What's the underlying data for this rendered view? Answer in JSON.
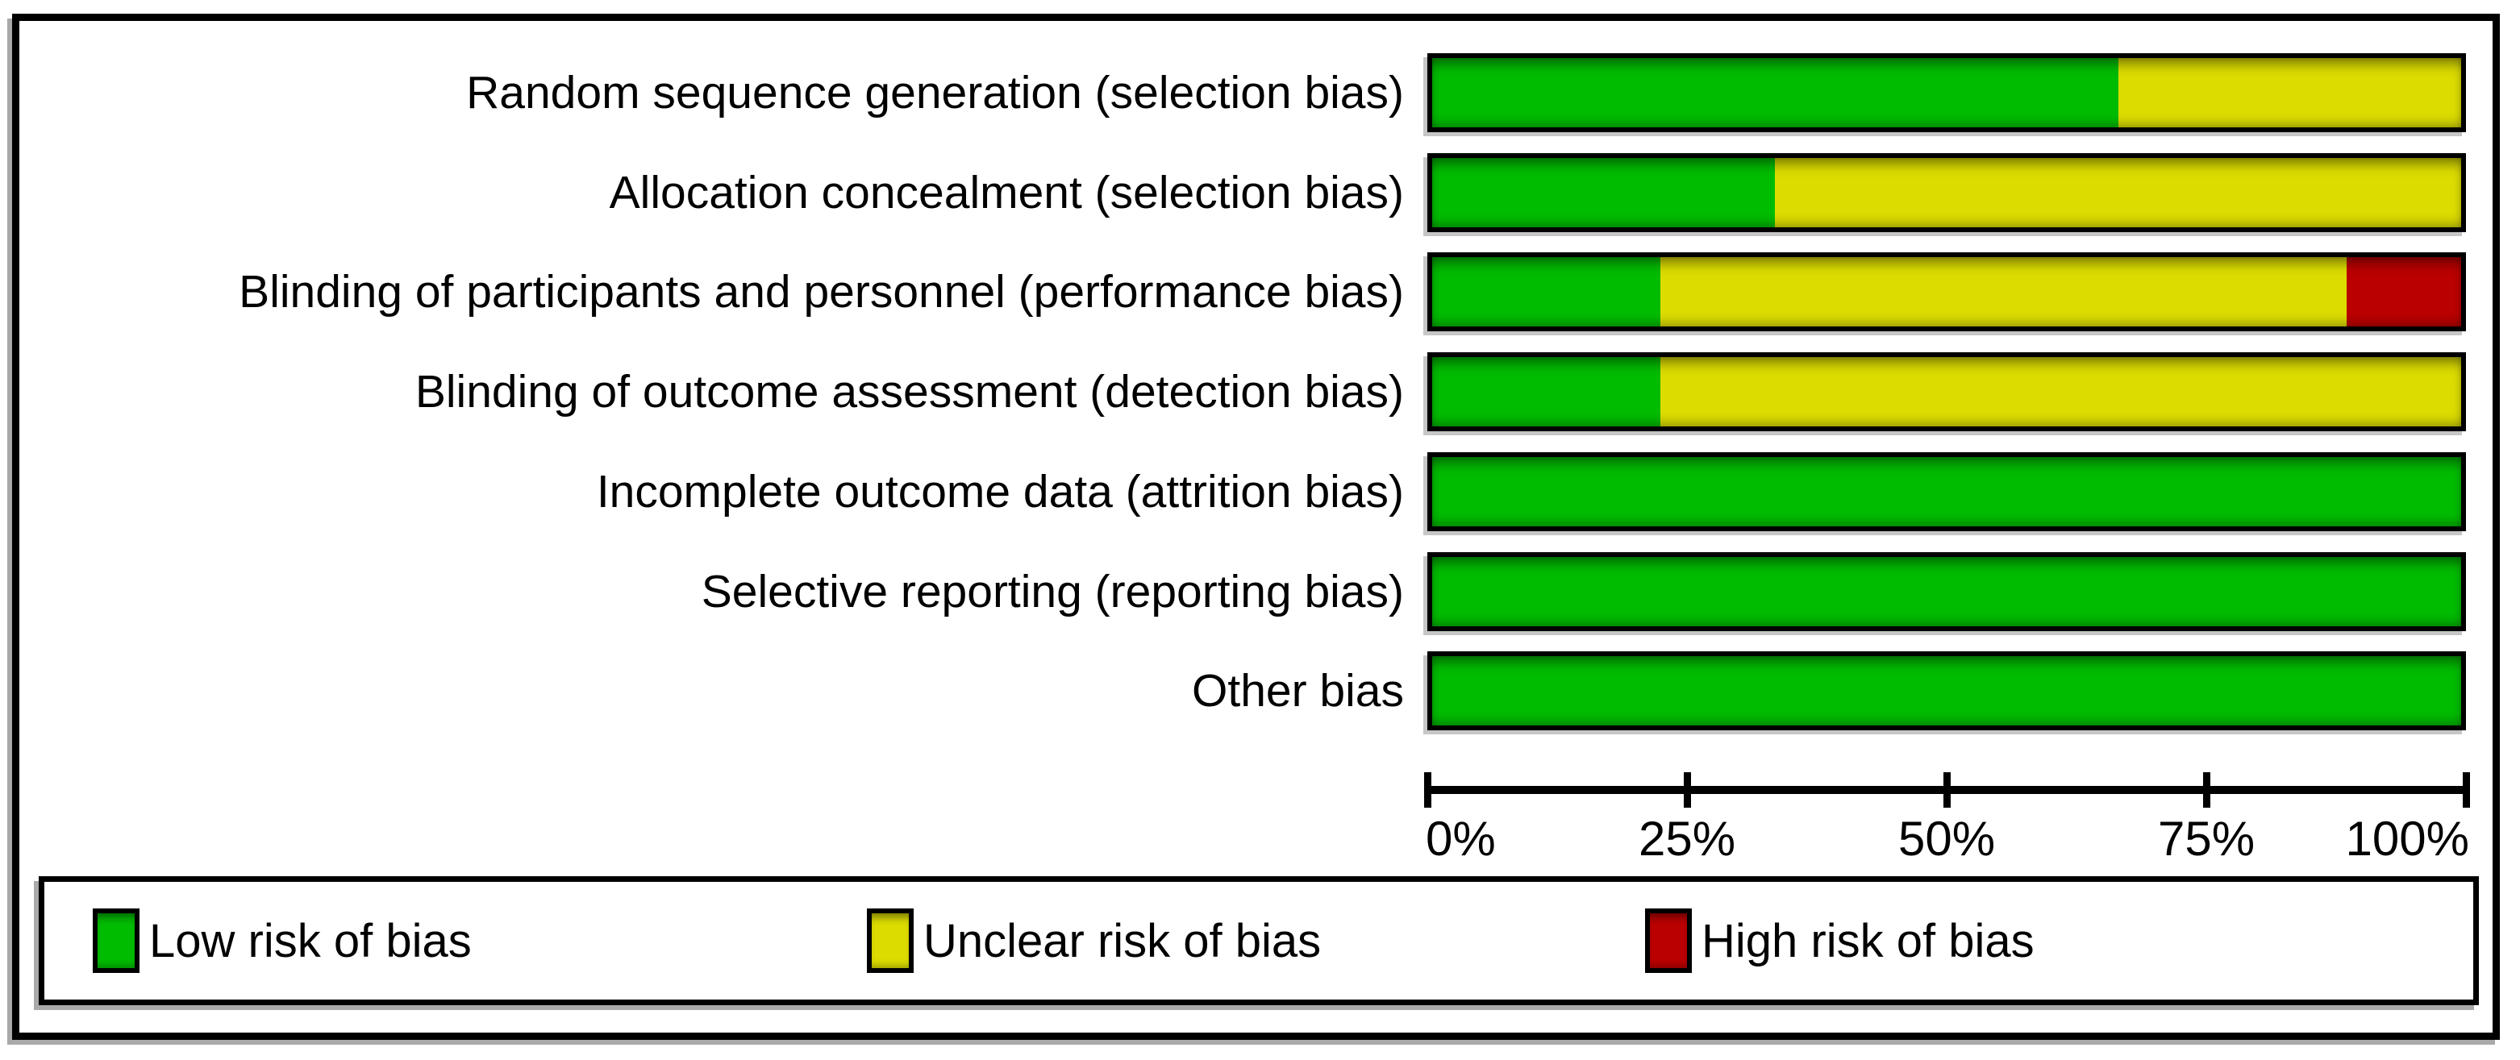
{
  "chart_data": {
    "type": "bar",
    "orientation": "horizontal",
    "stacked": true,
    "unit": "percent of studies",
    "categories": [
      "Random sequence generation (selection bias)",
      "Allocation concealment (selection bias)",
      "Blinding of participants and personnel (performance bias)",
      "Blinding of outcome assessment (detection bias)",
      "Incomplete outcome data (attrition bias)",
      "Selective reporting (reporting bias)",
      "Other bias"
    ],
    "series": [
      {
        "name": "Low risk of bias",
        "key": "low-risk",
        "color": "#00bc00",
        "values": [
          66.7,
          33.3,
          22.2,
          22.2,
          100,
          100,
          100
        ]
      },
      {
        "name": "Unclear risk of bias",
        "key": "unclear-risk",
        "color": "#dcdc00",
        "values": [
          33.3,
          66.7,
          66.7,
          77.8,
          0,
          0,
          0
        ]
      },
      {
        "name": "High risk of bias",
        "key": "high-risk",
        "color": "#bb0000",
        "values": [
          0,
          0,
          11.1,
          0,
          0,
          0,
          0
        ]
      }
    ],
    "xlim": [
      0,
      100
    ],
    "x_ticks": [
      {
        "label": "0%",
        "value": 0
      },
      {
        "label": "25%",
        "value": 25
      },
      {
        "label": "50%",
        "value": 50
      },
      {
        "label": "75%",
        "value": 75
      },
      {
        "label": "100%",
        "value": 100
      }
    ],
    "grid": false,
    "legend_position": "bottom",
    "colors": {
      "border": "#000000",
      "background": "#ffffff"
    }
  }
}
